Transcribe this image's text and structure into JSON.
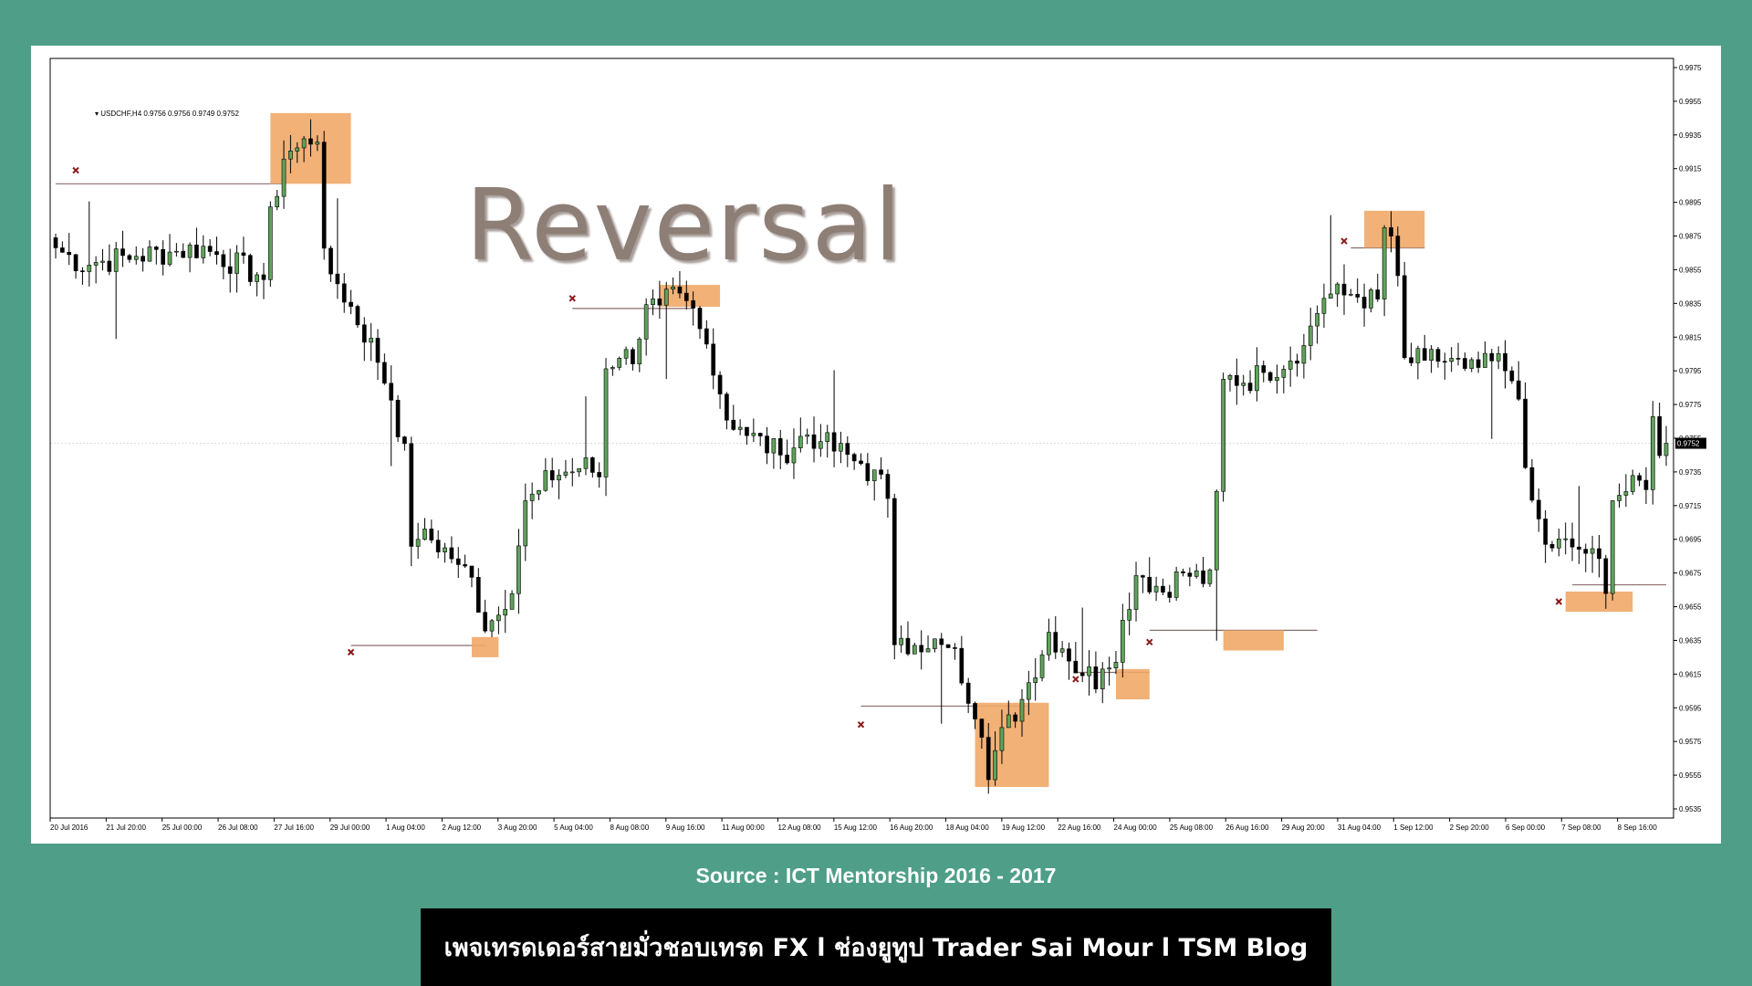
{
  "chart_data": {
    "type": "candlestick",
    "symbol_label": "USDCHF,H4  0.9756 0.9756 0.9749 0.9752",
    "title": "Reversal",
    "current_price": "0.9752",
    "y_ticks": [
      "0.9975",
      "0.9955",
      "0.9935",
      "0.9915",
      "0.9895",
      "0.9875",
      "0.9855",
      "0.9835",
      "0.9815",
      "0.9795",
      "0.9775",
      "0.9755",
      "0.9735",
      "0.9715",
      "0.9695",
      "0.9675",
      "0.9655",
      "0.9635",
      "0.9615",
      "0.9595",
      "0.9575",
      "0.9555",
      "0.9535"
    ],
    "x_ticks": [
      "20 Jul 2016",
      "21 Jul 20:00",
      "25 Jul 00:00",
      "26 Jul 08:00",
      "27 Jul 16:00",
      "29 Jul 00:00",
      "1 Aug 04:00",
      "2 Aug 12:00",
      "3 Aug 20:00",
      "5 Aug 04:00",
      "8 Aug 08:00",
      "9 Aug 16:00",
      "11 Aug 00:00",
      "12 Aug 08:00",
      "15 Aug 12:00",
      "16 Aug 20:00",
      "18 Aug 04:00",
      "19 Aug 12:00",
      "22 Aug 16:00",
      "24 Aug 00:00",
      "25 Aug 08:00",
      "26 Aug 16:00",
      "29 Aug 20:00",
      "31 Aug 04:00",
      "1 Sep 12:00",
      "2 Sep 20:00",
      "6 Sep 00:00",
      "7 Sep 08:00",
      "8 Sep 16:00"
    ],
    "ylim": [
      0.953,
      0.998
    ],
    "price_path": [
      [
        0,
        0.9868
      ],
      [
        4,
        0.9858
      ],
      [
        10,
        0.9862
      ],
      [
        16,
        0.9865
      ],
      [
        22,
        0.9868
      ],
      [
        27,
        0.9858
      ],
      [
        31,
        0.985
      ],
      [
        32,
        0.9885
      ],
      [
        34,
        0.9922
      ],
      [
        37,
        0.993
      ],
      [
        39,
        0.9936
      ],
      [
        40,
        0.986
      ],
      [
        43,
        0.984
      ],
      [
        47,
        0.981
      ],
      [
        50,
        0.978
      ],
      [
        52,
        0.9745
      ],
      [
        53,
        0.9695
      ],
      [
        56,
        0.9695
      ],
      [
        59,
        0.9685
      ],
      [
        62,
        0.967
      ],
      [
        64,
        0.9645
      ],
      [
        66,
        0.965
      ],
      [
        68,
        0.967
      ],
      [
        70,
        0.9715
      ],
      [
        74,
        0.9733
      ],
      [
        79,
        0.9738
      ],
      [
        81,
        0.9733
      ],
      [
        82,
        0.98
      ],
      [
        86,
        0.9805
      ],
      [
        88,
        0.983
      ],
      [
        92,
        0.9838
      ],
      [
        95,
        0.983
      ],
      [
        98,
        0.98
      ],
      [
        100,
        0.9768
      ],
      [
        104,
        0.9755
      ],
      [
        108,
        0.9745
      ],
      [
        112,
        0.9758
      ],
      [
        116,
        0.9748
      ],
      [
        120,
        0.974
      ],
      [
        124,
        0.9723
      ],
      [
        125,
        0.964
      ],
      [
        129,
        0.9625
      ],
      [
        133,
        0.9635
      ],
      [
        137,
        0.9595
      ],
      [
        139,
        0.956
      ],
      [
        141,
        0.9578
      ],
      [
        144,
        0.96
      ],
      [
        148,
        0.964
      ],
      [
        152,
        0.962
      ],
      [
        155,
        0.9612
      ],
      [
        158,
        0.963
      ],
      [
        161,
        0.9675
      ],
      [
        165,
        0.9665
      ],
      [
        168,
        0.9675
      ],
      [
        172,
        0.967
      ],
      [
        173,
        0.972
      ],
      [
        174,
        0.979
      ],
      [
        178,
        0.979
      ],
      [
        182,
        0.9798
      ],
      [
        186,
        0.981
      ],
      [
        189,
        0.984
      ],
      [
        194,
        0.984
      ],
      [
        197,
        0.9835
      ],
      [
        198,
        0.988
      ],
      [
        199,
        0.9875
      ],
      [
        200,
        0.9845
      ],
      [
        201,
        0.98
      ],
      [
        206,
        0.9802
      ],
      [
        211,
        0.9795
      ],
      [
        215,
        0.98
      ],
      [
        218,
        0.9785
      ],
      [
        219,
        0.973
      ],
      [
        222,
        0.9692
      ],
      [
        227,
        0.969
      ],
      [
        230,
        0.968
      ],
      [
        231,
        0.967
      ],
      [
        232,
        0.972
      ],
      [
        235,
        0.9725
      ],
      [
        237,
        0.973
      ],
      [
        238,
        0.9765
      ],
      [
        239,
        0.975
      ],
      [
        240,
        0.9752
      ]
    ],
    "annotations": {
      "x_marks": 10,
      "highlight_boxes": 9
    },
    "grid": false,
    "colors": {
      "bull_body": "#5fa35a",
      "bear_body": "#000000",
      "highlight": "#f0a868",
      "level_line": "#8a6d6d",
      "x_mark": "#8b1a1a",
      "background": "#4f9f88",
      "panel": "#ffffff"
    }
  },
  "source_text": "Source : ICT Mentorship 2016 - 2017",
  "footer_text": "เพจเทรดเดอร์สายมั่วชอบเทรด FX l ช่องยูทูป Trader Sai Mour l TSM Blog"
}
